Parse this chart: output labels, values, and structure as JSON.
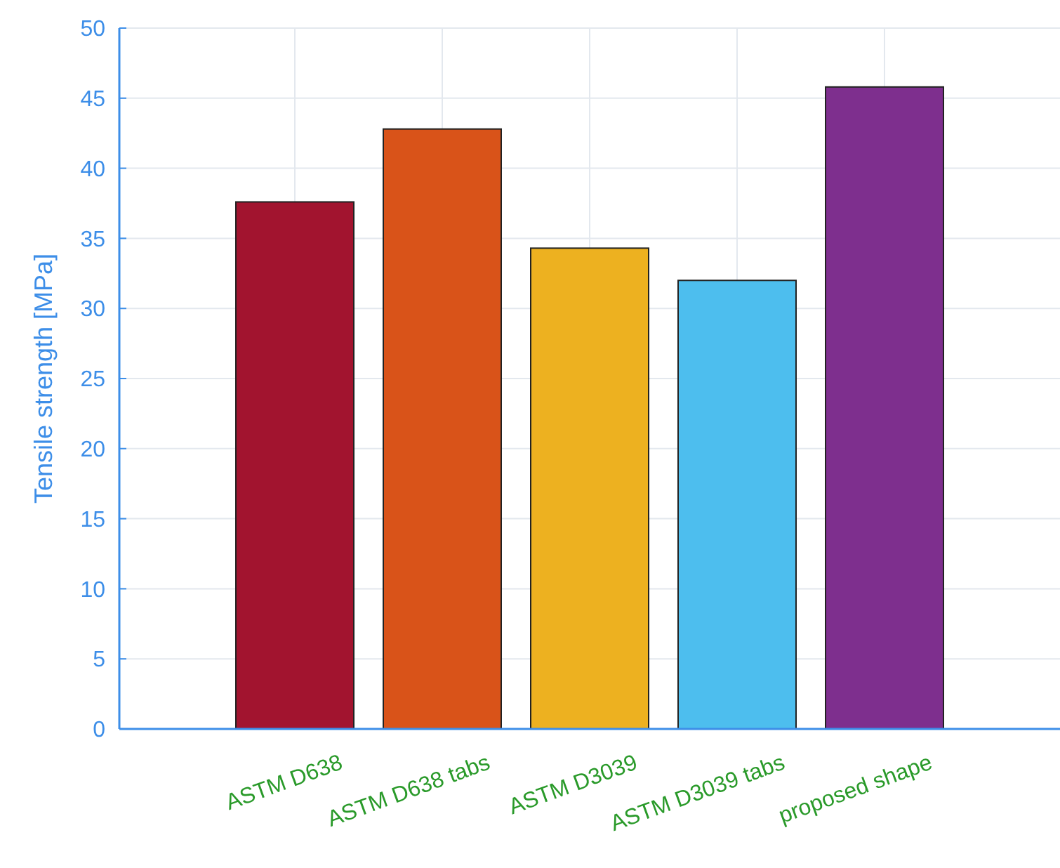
{
  "chart_data": {
    "type": "bar",
    "ylabel": "Tensile strength  [MPa]",
    "categories": [
      "ASTM D638",
      "ASTM D638 tabs",
      "ASTM D3039",
      "ASTM D3039 tabs",
      "proposed shape"
    ],
    "values": [
      37.6,
      42.8,
      34.3,
      32.0,
      45.8
    ],
    "colors": [
      "#a2142f",
      "#d95319",
      "#edb120",
      "#4dbeee",
      "#7e2f8e"
    ],
    "ylim": [
      0,
      50
    ],
    "yticks": [
      0,
      5,
      10,
      15,
      20,
      25,
      30,
      35,
      40,
      45,
      50
    ],
    "grid": true
  }
}
